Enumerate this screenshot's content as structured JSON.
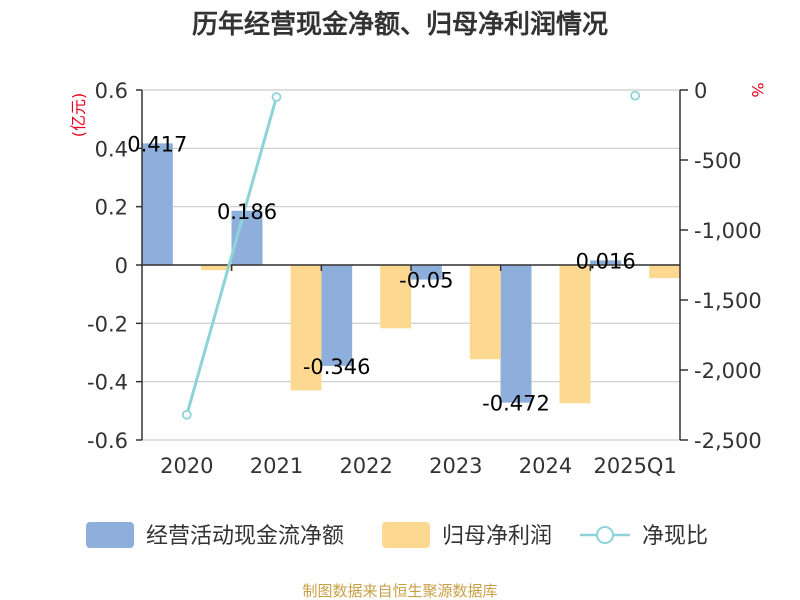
{
  "title": "历年经营现金净额、归母净利润情况",
  "source": "制图数据来自恒生聚源数据库",
  "left_axis_unit": "(亿元)",
  "right_axis_unit": "%",
  "legend": [
    {
      "label": "经营活动现金流净额",
      "kind": "bar",
      "color": "#8eafdc"
    },
    {
      "label": "归母净利润",
      "kind": "bar",
      "color": "#fdd891"
    },
    {
      "label": "净现比",
      "kind": "line",
      "color": "#8ed3d8"
    }
  ],
  "chart_data": {
    "type": "bar",
    "title": "历年经营现金净额、归母净利润情况",
    "categories": [
      "2020",
      "2021",
      "2022",
      "2023",
      "2024",
      "2025Q1"
    ],
    "series": [
      {
        "name": "经营活动现金流净额",
        "type": "bar",
        "axis": "left",
        "color": "#8eafdc",
        "values": [
          0.417,
          0.186,
          -0.346,
          -0.05,
          -0.472,
          0.016
        ],
        "labels": [
          "0.417",
          "0.186",
          "-0.346",
          "-0.05",
          "-0.472",
          "0.016"
        ]
      },
      {
        "name": "归母净利润",
        "type": "bar",
        "axis": "left",
        "color": "#fdd891",
        "values": [
          -0.018,
          -0.43,
          -0.217,
          -0.323,
          -0.474,
          -0.045
        ]
      },
      {
        "name": "净现比",
        "type": "line",
        "axis": "right",
        "color": "#8ed3d8",
        "values": [
          -2320,
          -50,
          null,
          null,
          null,
          -40
        ]
      }
    ],
    "left_axis": {
      "min": -0.6,
      "max": 0.6,
      "ticks": [
        "-0.6",
        "-0.4",
        "-0.2",
        "0",
        "0.2",
        "0.4",
        "0.6"
      ]
    },
    "right_axis": {
      "min": -2500,
      "max": 0,
      "ticks": [
        "-2,500",
        "-2,000",
        "-1,500",
        "-1,000",
        "-500",
        "0"
      ]
    },
    "xlabel": "",
    "ylabel": "(亿元)",
    "y2label": "%",
    "grid": true,
    "legend_position": "bottom"
  }
}
